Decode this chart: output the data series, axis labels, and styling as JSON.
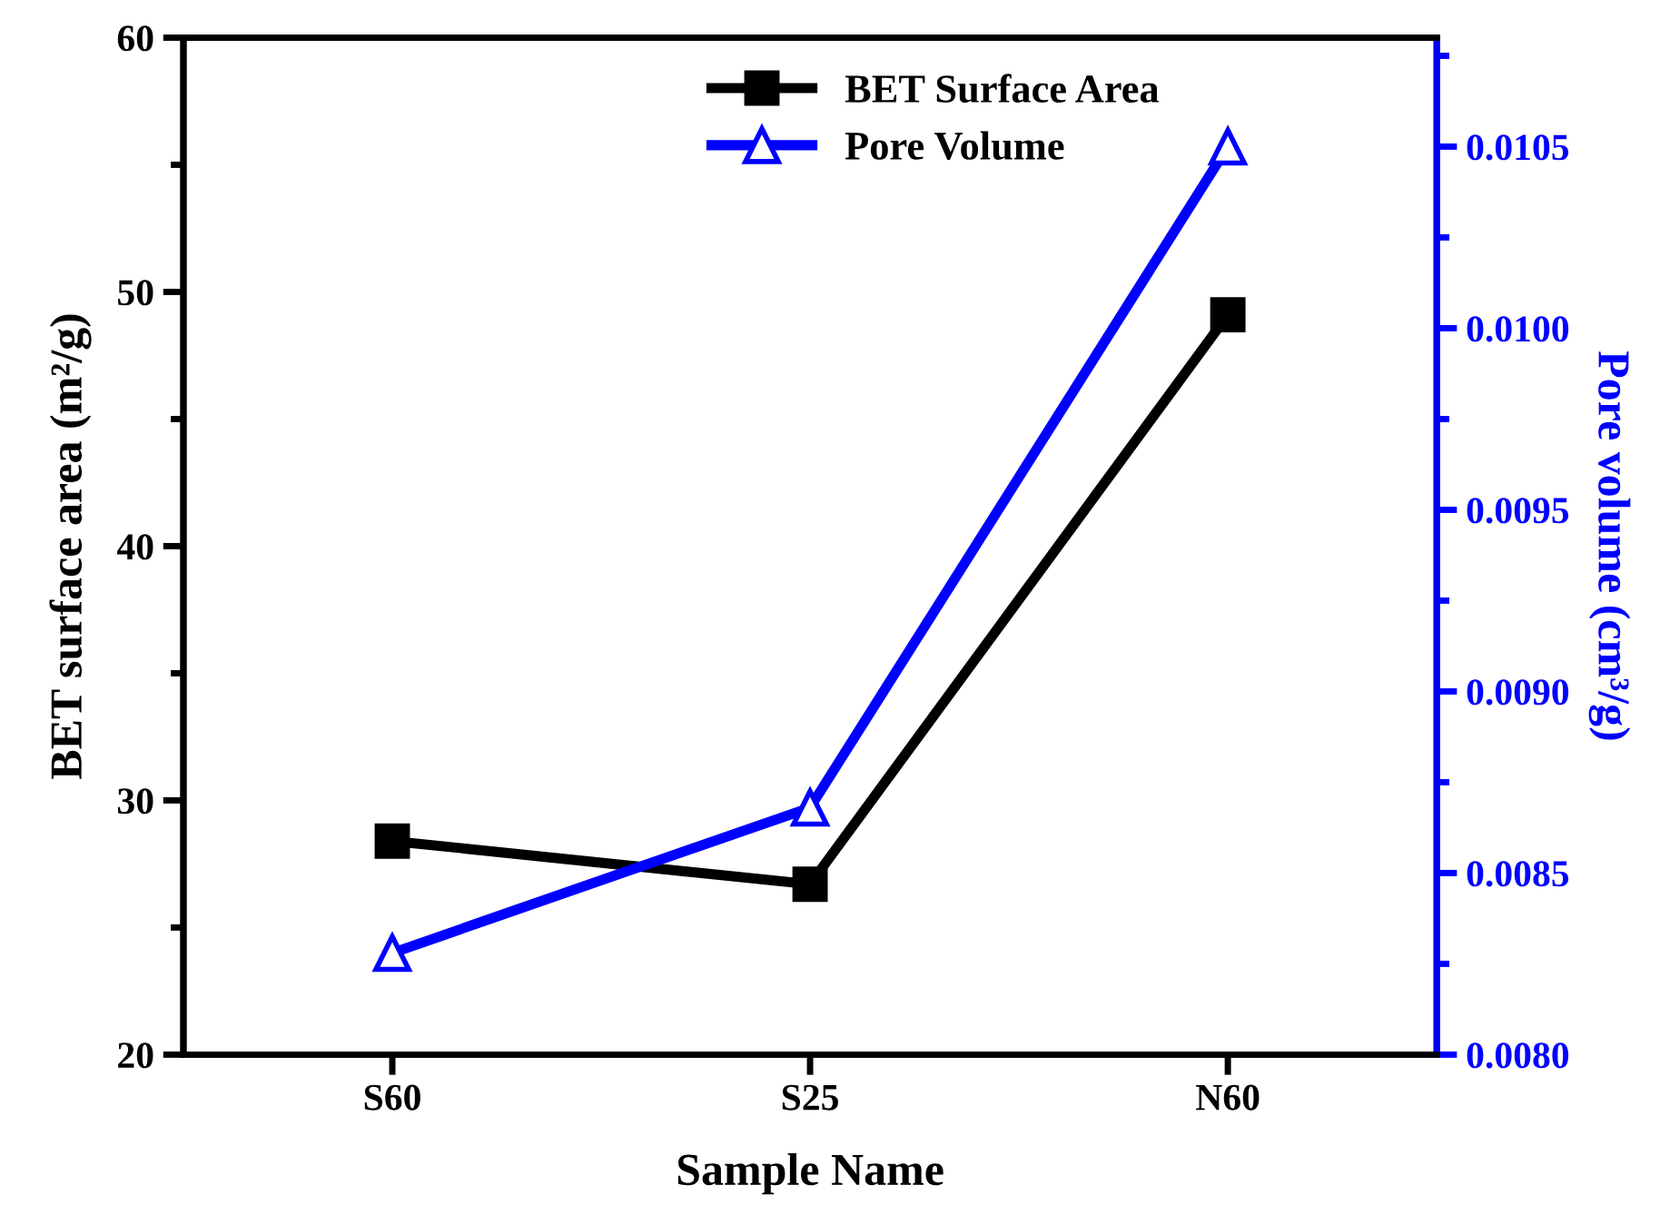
{
  "chart_data": {
    "type": "line",
    "categories": [
      "S60",
      "S25",
      "N60"
    ],
    "xlabel": "Sample Name",
    "ylabel": "BET surface area (m²/g)",
    "y2label": "Pore volume (cm³/g)",
    "ylim": [
      20,
      60
    ],
    "yticks": [
      20,
      30,
      40,
      50,
      60
    ],
    "y2lim": [
      0.008,
      0.0108
    ],
    "y2ticks": [
      {
        "value": 0.008,
        "label": "0.0080"
      },
      {
        "value": 0.0085,
        "label": "0.0085"
      },
      {
        "value": 0.009,
        "label": "0.0090"
      },
      {
        "value": 0.0095,
        "label": "0.0095"
      },
      {
        "value": 0.01,
        "label": "0.0100"
      },
      {
        "value": 0.0105,
        "label": "0.0105"
      }
    ],
    "series": [
      {
        "name": "BET Surface Area",
        "color": "#000000",
        "values": [
          28.4,
          26.7,
          49.1
        ],
        "marker": "square"
      },
      {
        "name": "Pore Volume",
        "color": "#0000ff",
        "values": [
          0.00828,
          0.00868,
          0.0105
        ],
        "marker": "triangle",
        "axis": "y2"
      }
    ],
    "legend": "top",
    "grid": false
  }
}
